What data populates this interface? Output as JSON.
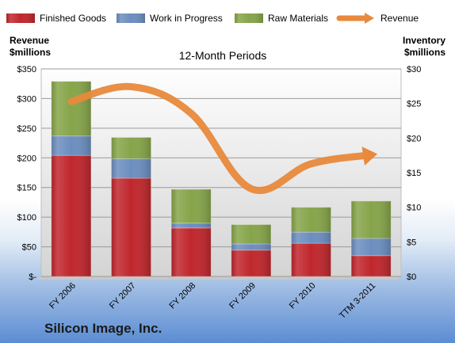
{
  "chart_data": {
    "type": "bar",
    "stacked": true,
    "subtitle": "12-Month Periods",
    "company": "Silicon Image, Inc.",
    "left_axis": {
      "label_line1": "Revenue",
      "label_line2": "$millions",
      "ylim": [
        0,
        350
      ],
      "ticks": [
        0,
        50,
        100,
        150,
        200,
        250,
        300,
        350
      ],
      "tick_labels": [
        "$-",
        "$50",
        "$100",
        "$150",
        "$200",
        "$250",
        "$300",
        "$350"
      ]
    },
    "right_axis": {
      "label_line1": "Inventory",
      "label_line2": "$millions",
      "ylim": [
        0,
        30
      ],
      "ticks": [
        0,
        5,
        10,
        15,
        20,
        25,
        30
      ],
      "tick_labels": [
        "$0",
        "$5",
        "$10",
        "$15",
        "$20",
        "$25",
        "$30"
      ]
    },
    "categories": [
      "FY 2006",
      "FY 2007",
      "FY 2008",
      "FY 2009",
      "FY 2010",
      "TTM 3-2011"
    ],
    "series": [
      {
        "name": "Finished Goods",
        "axis": "right",
        "color": "#c0272d",
        "values": [
          17.5,
          14.2,
          7.0,
          3.8,
          4.8,
          3.0
        ]
      },
      {
        "name": "Work in Progress",
        "axis": "right",
        "color": "#6c8ebf",
        "values": [
          2.8,
          2.8,
          0.7,
          0.9,
          1.6,
          2.5
        ]
      },
      {
        "name": "Raw Materials",
        "axis": "right",
        "color": "#86a54a",
        "values": [
          7.9,
          3.1,
          4.9,
          2.8,
          3.6,
          5.4
        ]
      },
      {
        "name": "Revenue",
        "axis": "left",
        "type": "line",
        "color": "#e8893c",
        "values": [
          295,
          320,
          275,
          148,
          190,
          205
        ]
      }
    ],
    "legend_position": "top",
    "grid": true
  }
}
